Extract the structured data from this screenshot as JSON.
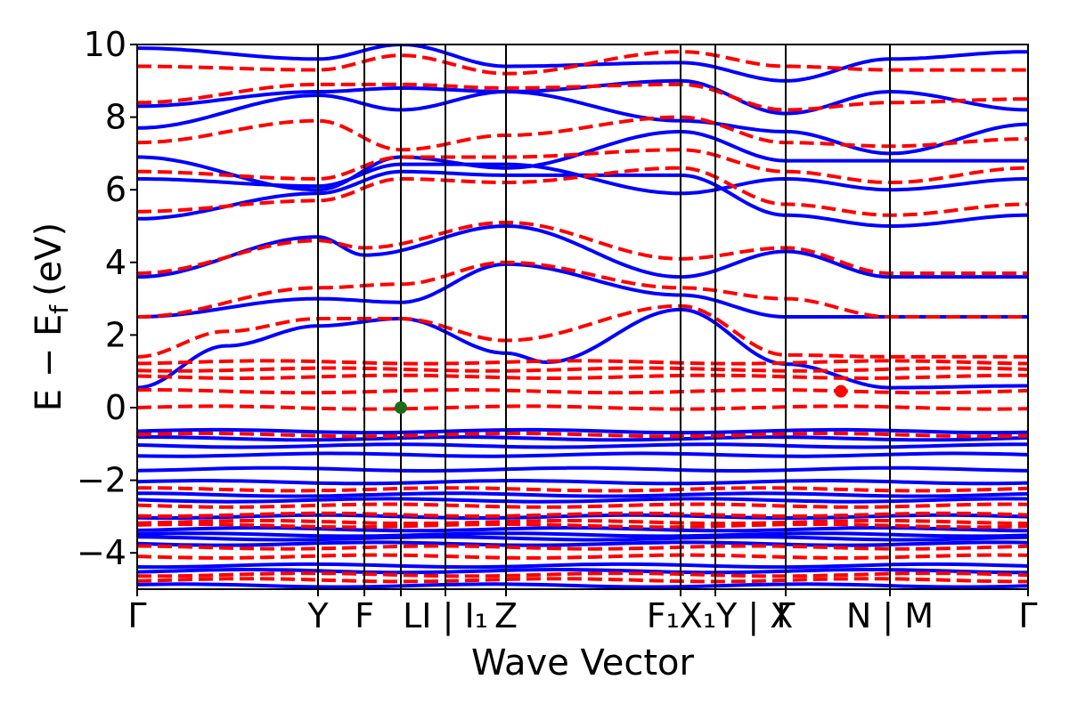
{
  "chart_data": {
    "type": "line",
    "xlabel": "Wave Vector",
    "ylabel": "E − E",
    "ylabel_subscript": "f",
    "ylabel_unit": "(eV)",
    "ylim": [
      -5,
      10
    ],
    "yticks": [
      {
        "value": 10,
        "label": "10"
      },
      {
        "value": 8,
        "label": "8"
      },
      {
        "value": 6,
        "label": "6"
      },
      {
        "value": 4,
        "label": "4"
      },
      {
        "value": 2,
        "label": "2"
      },
      {
        "value": 0,
        "label": "0"
      },
      {
        "value": -2,
        "label": "−2"
      },
      {
        "value": -4,
        "label": "−4"
      }
    ],
    "kpoint_labels": [
      "Γ",
      "Y",
      "F",
      "L",
      "I",
      "|",
      "I₁",
      "Z",
      "F₁",
      "X₁",
      "Y",
      "|",
      "X",
      "Γ",
      "N",
      "|",
      "M",
      "Γ"
    ],
    "kpoint_labels_display": [
      "Γ",
      "Y",
      "F",
      "LI | I₁",
      "Z",
      "F₁X₁Y | X",
      "Γ",
      "N | M",
      "Γ"
    ],
    "xlim": [
      0,
      1
    ],
    "kpoint_positions": [
      0.0,
      0.203,
      0.255,
      0.296,
      0.346,
      0.414,
      0.61,
      0.649,
      0.728,
      0.845,
      1.0
    ],
    "series": [
      {
        "name": "",
        "style": "solid",
        "color": "#0000ff",
        "flat_bands": [
          -0.65,
          -0.85,
          -1.05,
          -1.3,
          -1.7,
          -2.05,
          -2.4,
          -2.55,
          -3.0,
          -3.35,
          -3.5,
          -3.6,
          -3.75,
          -4.35,
          -4.5,
          -4.9
        ],
        "dispersive_bands": [
          {
            "anchors": [
              [
                0.0,
                0.55
              ],
              [
                0.1,
                1.7
              ],
              [
                0.203,
                2.25
              ],
              [
                0.296,
                2.45
              ],
              [
                0.414,
                1.5
              ],
              [
                0.46,
                1.25
              ],
              [
                0.61,
                2.7
              ],
              [
                0.728,
                1.2
              ],
              [
                0.845,
                0.55
              ],
              [
                1.0,
                0.6
              ]
            ]
          },
          {
            "anchors": [
              [
                0.0,
                2.5
              ],
              [
                0.203,
                3.0
              ],
              [
                0.296,
                2.9
              ],
              [
                0.414,
                3.95
              ],
              [
                0.61,
                3.1
              ],
              [
                0.728,
                2.5
              ],
              [
                0.845,
                2.5
              ],
              [
                1.0,
                2.5
              ]
            ]
          },
          {
            "anchors": [
              [
                0.0,
                3.6
              ],
              [
                0.203,
                4.7
              ],
              [
                0.255,
                4.2
              ],
              [
                0.414,
                5.0
              ],
              [
                0.61,
                3.6
              ],
              [
                0.728,
                4.3
              ],
              [
                0.845,
                3.6
              ],
              [
                1.0,
                3.6
              ]
            ]
          },
          {
            "anchors": [
              [
                0.0,
                5.2
              ],
              [
                0.203,
                5.9
              ],
              [
                0.296,
                6.5
              ],
              [
                0.414,
                6.4
              ],
              [
                0.61,
                6.4
              ],
              [
                0.728,
                5.3
              ],
              [
                0.845,
                5.0
              ],
              [
                1.0,
                5.3
              ]
            ]
          },
          {
            "anchors": [
              [
                0.0,
                6.3
              ],
              [
                0.203,
                6.1
              ],
              [
                0.296,
                6.7
              ],
              [
                0.414,
                6.7
              ],
              [
                0.61,
                5.9
              ],
              [
                0.728,
                6.3
              ],
              [
                0.845,
                6.0
              ],
              [
                1.0,
                6.3
              ]
            ]
          },
          {
            "anchors": [
              [
                0.0,
                6.9
              ],
              [
                0.203,
                6.0
              ],
              [
                0.296,
                6.9
              ],
              [
                0.414,
                6.6
              ],
              [
                0.61,
                7.6
              ],
              [
                0.728,
                6.8
              ],
              [
                0.845,
                6.8
              ],
              [
                1.0,
                6.8
              ]
            ]
          },
          {
            "anchors": [
              [
                0.0,
                7.7
              ],
              [
                0.203,
                8.6
              ],
              [
                0.296,
                8.2
              ],
              [
                0.414,
                8.7
              ],
              [
                0.61,
                7.9
              ],
              [
                0.728,
                7.6
              ],
              [
                0.845,
                7.0
              ],
              [
                1.0,
                7.8
              ]
            ]
          },
          {
            "anchors": [
              [
                0.0,
                8.3
              ],
              [
                0.203,
                8.7
              ],
              [
                0.296,
                8.8
              ],
              [
                0.414,
                8.7
              ],
              [
                0.61,
                9.0
              ],
              [
                0.728,
                8.1
              ],
              [
                0.845,
                8.7
              ],
              [
                1.0,
                8.2
              ]
            ]
          },
          {
            "anchors": [
              [
                0.0,
                9.9
              ],
              [
                0.203,
                9.6
              ],
              [
                0.296,
                10.0
              ],
              [
                0.414,
                9.4
              ],
              [
                0.61,
                9.5
              ],
              [
                0.728,
                9.0
              ],
              [
                0.845,
                9.6
              ],
              [
                1.0,
                9.8
              ]
            ]
          }
        ]
      },
      {
        "name": "",
        "style": "dashed",
        "color": "#ff0000",
        "flat_bands": [
          0.0,
          0.45,
          0.85,
          1.05,
          1.25,
          -0.75,
          -2.25,
          -2.7,
          -2.95,
          -3.15,
          -3.25,
          -3.85,
          -4.1,
          -4.6,
          -4.75
        ],
        "dispersive_bands": [
          {
            "anchors": [
              [
                0.0,
                1.4
              ],
              [
                0.1,
                2.1
              ],
              [
                0.203,
                2.45
              ],
              [
                0.296,
                2.45
              ],
              [
                0.414,
                1.85
              ],
              [
                0.61,
                2.8
              ],
              [
                0.728,
                1.45
              ],
              [
                0.845,
                1.4
              ],
              [
                1.0,
                1.4
              ]
            ]
          },
          {
            "anchors": [
              [
                0.0,
                2.5
              ],
              [
                0.203,
                3.3
              ],
              [
                0.296,
                3.4
              ],
              [
                0.414,
                4.0
              ],
              [
                0.61,
                3.3
              ],
              [
                0.728,
                3.0
              ],
              [
                0.845,
                2.5
              ],
              [
                1.0,
                2.5
              ]
            ]
          },
          {
            "anchors": [
              [
                0.0,
                3.7
              ],
              [
                0.203,
                4.6
              ],
              [
                0.255,
                4.4
              ],
              [
                0.414,
                5.1
              ],
              [
                0.61,
                4.1
              ],
              [
                0.728,
                4.4
              ],
              [
                0.845,
                3.7
              ],
              [
                1.0,
                3.7
              ]
            ]
          },
          {
            "anchors": [
              [
                0.0,
                5.4
              ],
              [
                0.203,
                5.7
              ],
              [
                0.296,
                6.3
              ],
              [
                0.414,
                6.2
              ],
              [
                0.61,
                6.6
              ],
              [
                0.728,
                5.6
              ],
              [
                0.845,
                5.3
              ],
              [
                1.0,
                5.6
              ]
            ]
          },
          {
            "anchors": [
              [
                0.0,
                6.5
              ],
              [
                0.203,
                6.3
              ],
              [
                0.296,
                6.9
              ],
              [
                0.414,
                6.9
              ],
              [
                0.61,
                7.1
              ],
              [
                0.728,
                6.5
              ],
              [
                0.845,
                6.2
              ],
              [
                1.0,
                6.6
              ]
            ]
          },
          {
            "anchors": [
              [
                0.0,
                7.3
              ],
              [
                0.203,
                7.9
              ],
              [
                0.296,
                7.1
              ],
              [
                0.414,
                7.5
              ],
              [
                0.61,
                8.0
              ],
              [
                0.728,
                7.3
              ],
              [
                0.845,
                7.2
              ],
              [
                1.0,
                7.4
              ]
            ]
          },
          {
            "anchors": [
              [
                0.0,
                8.4
              ],
              [
                0.203,
                8.9
              ],
              [
                0.296,
                8.9
              ],
              [
                0.414,
                8.8
              ],
              [
                0.61,
                8.9
              ],
              [
                0.728,
                8.2
              ],
              [
                0.845,
                8.4
              ],
              [
                1.0,
                8.5
              ]
            ]
          },
          {
            "anchors": [
              [
                0.0,
                9.4
              ],
              [
                0.203,
                9.3
              ],
              [
                0.296,
                9.7
              ],
              [
                0.414,
                9.2
              ],
              [
                0.61,
                9.8
              ],
              [
                0.728,
                9.4
              ],
              [
                0.845,
                9.3
              ],
              [
                1.0,
                9.3
              ]
            ]
          }
        ]
      }
    ],
    "markers": [
      {
        "name": "vbm",
        "x": 0.296,
        "y": 0.0,
        "color": "#1a6b1a"
      },
      {
        "name": "cbm",
        "x": 0.79,
        "y": 0.45,
        "color": "#ff0000"
      }
    ]
  }
}
